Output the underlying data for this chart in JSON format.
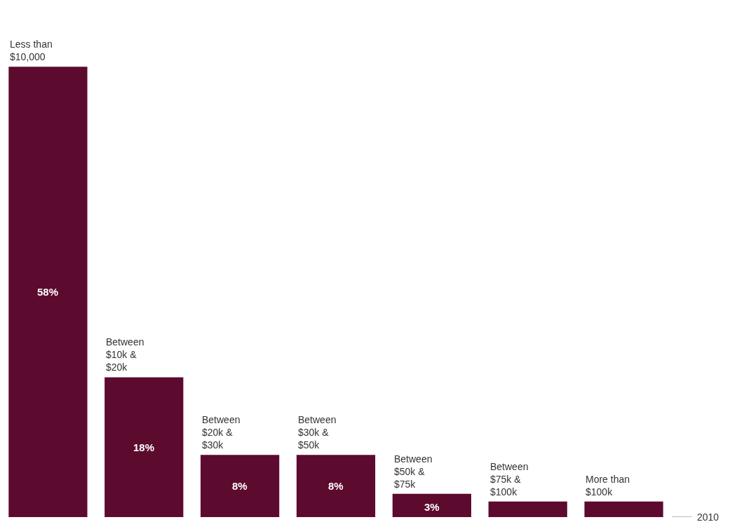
{
  "chart_data": {
    "type": "bar",
    "categories": [
      "Less than $10,000",
      "Between $10k & $20k",
      "Between $20k & $30k",
      "Between $30k & $50k",
      "Between $50k & $75k",
      "Between $75k & $100k",
      "More than $100k"
    ],
    "values": [
      58,
      18,
      8,
      8,
      3,
      2,
      2
    ],
    "value_labels": [
      "58%",
      "18%",
      "8%",
      "8%",
      "3%",
      null,
      null
    ],
    "color": "#5c0a2e",
    "annotations": [
      "2010"
    ]
  }
}
